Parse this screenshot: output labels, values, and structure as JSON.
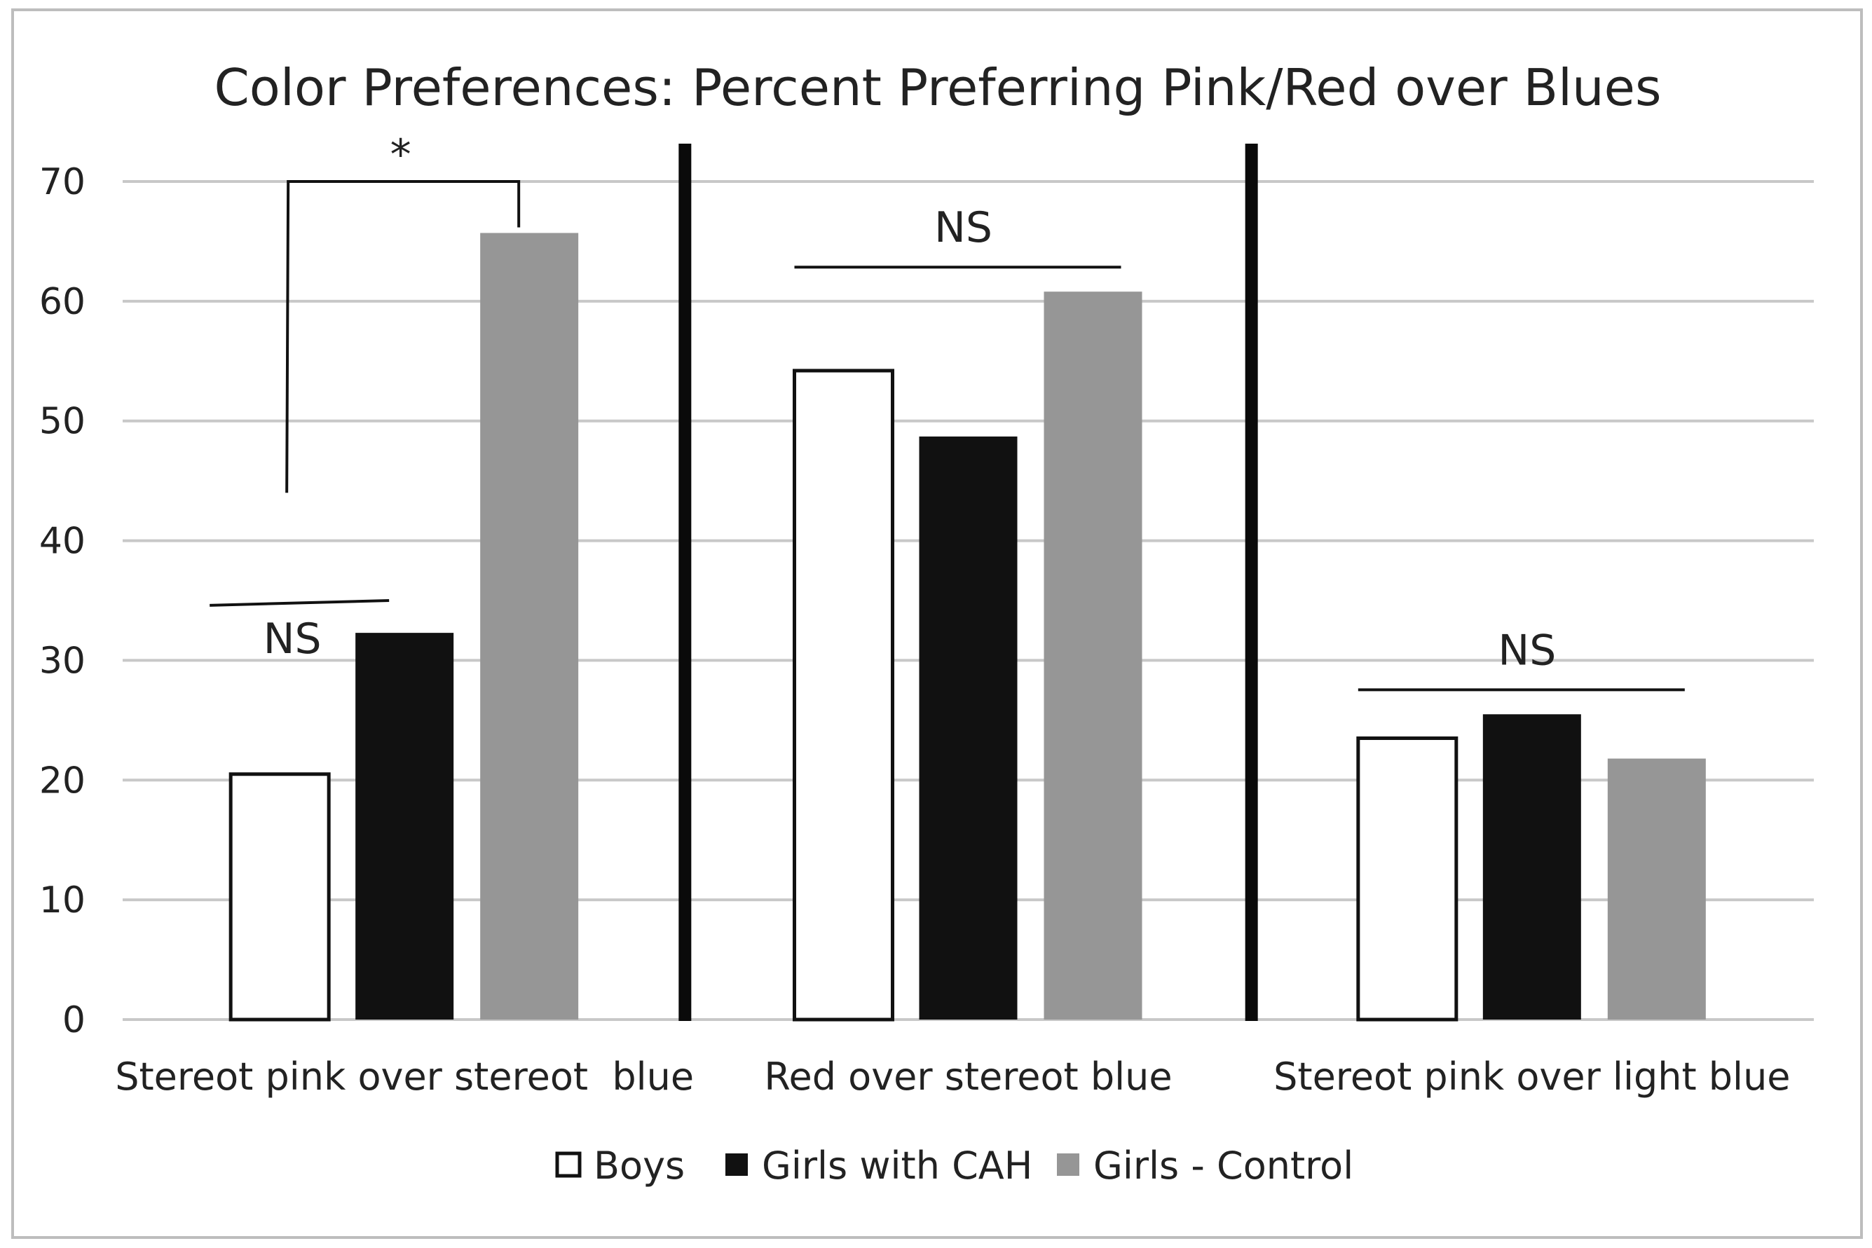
{
  "chart_data": {
    "type": "bar",
    "title": "Color Preferences: Percent Preferring Pink/Red over Blues",
    "xlabel": "",
    "ylabel": "",
    "ylim": [
      0,
      70
    ],
    "yticks": [
      0,
      10,
      20,
      30,
      40,
      50,
      60,
      70
    ],
    "grid": true,
    "legend_position": "bottom",
    "categories": [
      "Stereot pink over stereot  blue",
      "Red over stereot blue",
      "Stereot pink over light blue"
    ],
    "series": [
      {
        "name": "Boys",
        "color": "#ffffff",
        "values": [
          20.5,
          54.2,
          23.5
        ]
      },
      {
        "name": "Girls with CAH",
        "color": "#111111",
        "values": [
          32.3,
          48.7,
          25.5
        ]
      },
      {
        "name": "Girls - Control",
        "color": "#969696",
        "values": [
          65.7,
          60.8,
          21.8
        ]
      }
    ],
    "annotations": [
      {
        "text": "*",
        "category": 0,
        "between_series": [
          "Boys",
          "Girls - Control"
        ]
      },
      {
        "text": "NS",
        "category": 0,
        "between_series": [
          "Boys",
          "Girls with CAH"
        ]
      },
      {
        "text": "NS",
        "category": 1,
        "between_series": [
          "Boys",
          "Girls - Control"
        ]
      },
      {
        "text": "NS",
        "category": 2,
        "between_series": [
          "Boys",
          "Girls - Control"
        ]
      }
    ]
  }
}
